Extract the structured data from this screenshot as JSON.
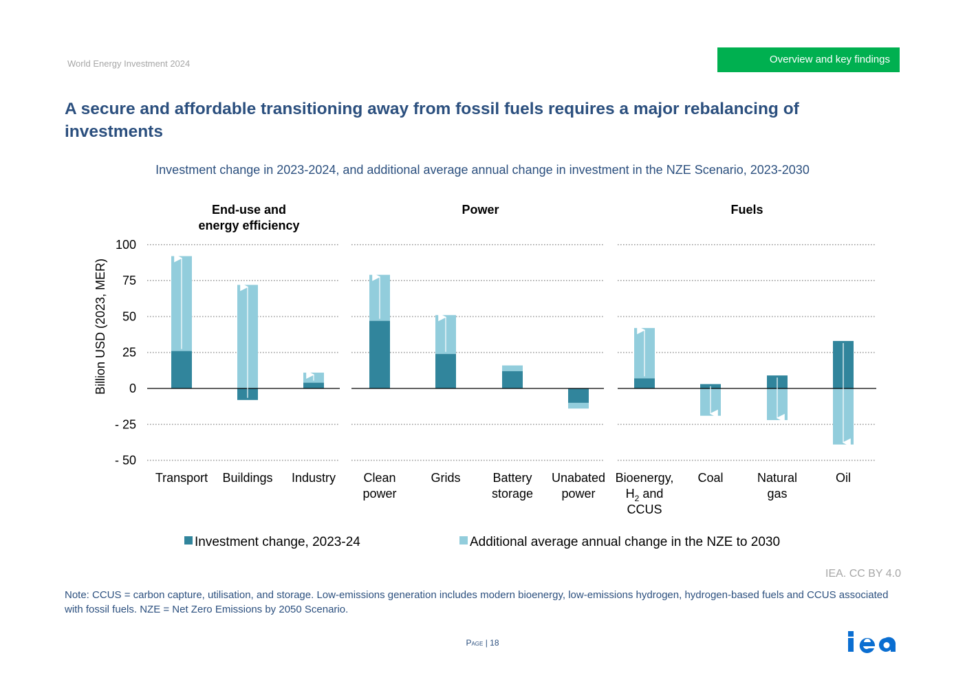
{
  "header": {
    "report_name": "World Energy Investment 2024",
    "section": "Overview and key findings"
  },
  "page_title": "A secure and affordable transitioning away from fossil fuels requires a major rebalancing of investments",
  "chart_data": {
    "type": "bar",
    "title": "Investment change in 2023-2024, and additional average annual change in investment in the NZE Scenario, 2023-2030",
    "ylabel": "Billion USD (2023, MER)",
    "ylim": [
      -50,
      100
    ],
    "yticks": [
      "100",
      "75",
      "50",
      "25",
      "0",
      "- 25",
      "- 50"
    ],
    "ytick_values": [
      100,
      75,
      50,
      25,
      0,
      -25,
      -50
    ],
    "grid": true,
    "legend_position": "bottom",
    "groups": [
      {
        "name": "End-use and energy efficiency",
        "name_lines": [
          "End-use and",
          "energy efficiency"
        ],
        "categories": [
          "Transport",
          "Buildings",
          "Industry"
        ]
      },
      {
        "name": "Power",
        "name_lines": [
          "Power"
        ],
        "categories": [
          "Clean power",
          "Grids",
          "Battery storage",
          "Unabated power"
        ]
      },
      {
        "name": "Fuels",
        "name_lines": [
          "Fuels"
        ],
        "categories": [
          "Bioenergy, H2 and CCUS",
          "Coal",
          "Natural gas",
          "Oil"
        ]
      }
    ],
    "category_label_lines": [
      [
        "Transport"
      ],
      [
        "Buildings"
      ],
      [
        "Industry"
      ],
      [
        "Clean",
        "power"
      ],
      [
        "Grids"
      ],
      [
        "Battery",
        "storage"
      ],
      [
        "Unabated",
        "power"
      ],
      [
        "Bioenergy,",
        "H2 and",
        "CCUS"
      ],
      [
        "Coal"
      ],
      [
        "Natural",
        "gas"
      ],
      [
        "Oil"
      ]
    ],
    "categories": [
      "Transport",
      "Buildings",
      "Industry",
      "Clean power",
      "Grids",
      "Battery storage",
      "Unabated power",
      "Bioenergy, H2 and CCUS",
      "Coal",
      "Natural gas",
      "Oil"
    ],
    "series": [
      {
        "name": "Investment change, 2023-24",
        "color": "#31859c",
        "values": [
          26,
          -8,
          4,
          47,
          24,
          12,
          -10,
          7,
          3,
          9,
          33
        ]
      },
      {
        "name": "Additional average annual change in the NZE to 2030",
        "color": "#92cddc",
        "values": [
          92,
          72,
          11,
          79,
          51,
          16,
          -14,
          42,
          -19,
          -22,
          -39
        ]
      }
    ],
    "series_note": "Second series values are the bar end points (cumulative level reached in the NZE).",
    "arrows": [
      true,
      true,
      true,
      true,
      true,
      false,
      false,
      true,
      true,
      true,
      true
    ]
  },
  "credit": "IEA. CC BY 4.0",
  "note": "Note: CCUS = carbon capture, utilisation, and storage. Low-emissions generation includes modern bioenergy, low-emissions hydrogen, hydrogen-based fuels and CCUS associated with fossil fuels. NZE = Net Zero Emissions by 2050 Scenario.",
  "footer": {
    "page_word": "Page",
    "page_number": "18",
    "logo_text": "iea"
  },
  "colors": {
    "accent_green": "#00b050",
    "title_blue": "#2b4f7e",
    "dark_teal": "#31859c",
    "light_teal": "#92cddc"
  }
}
